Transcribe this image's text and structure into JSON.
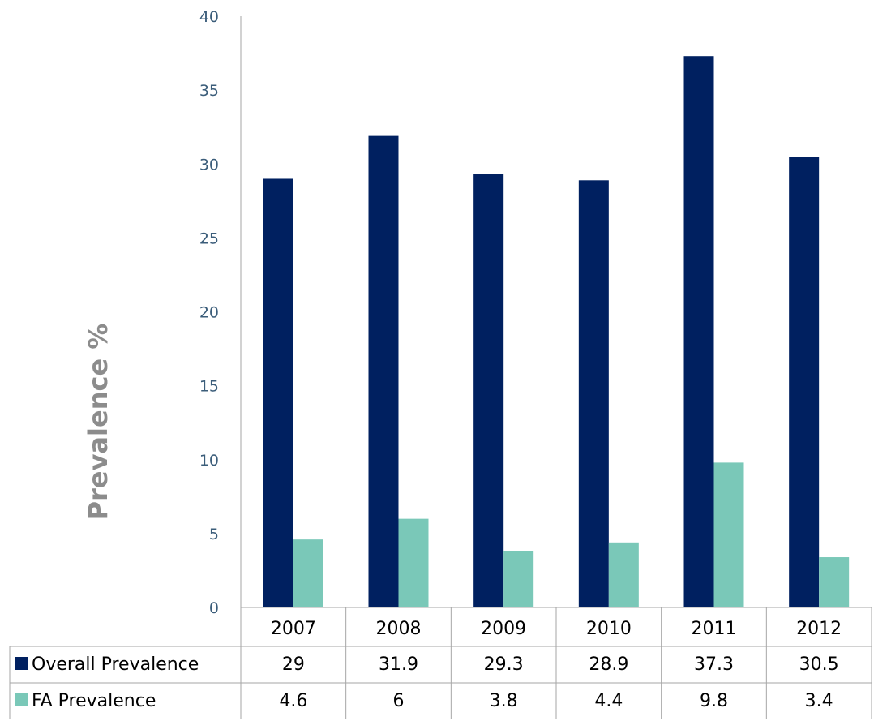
{
  "chart_data": {
    "type": "bar",
    "title": "",
    "xlabel": "",
    "ylabel": "Prevalence %",
    "ylim": [
      0,
      40
    ],
    "yticks": [
      0,
      5,
      10,
      15,
      20,
      25,
      30,
      35,
      40
    ],
    "categories": [
      "2007",
      "2008",
      "2009",
      "2010",
      "2011",
      "2012"
    ],
    "series": [
      {
        "name": "Overall Prevalence",
        "color": "#002060",
        "values": [
          29,
          31.9,
          29.3,
          28.9,
          37.3,
          30.5
        ],
        "table_values": [
          "29",
          "31.9",
          "29.3",
          "28.9",
          "37.3",
          "30.5"
        ]
      },
      {
        "name": "FA Prevalence",
        "color": "#7ac8b8",
        "values": [
          4.6,
          6,
          3.8,
          4.4,
          9.8,
          3.4
        ],
        "table_values": [
          "4.6",
          "6",
          "3.8",
          "4.4",
          "9.8",
          "3.4"
        ]
      }
    ],
    "grid": false,
    "legend": "data-table"
  }
}
